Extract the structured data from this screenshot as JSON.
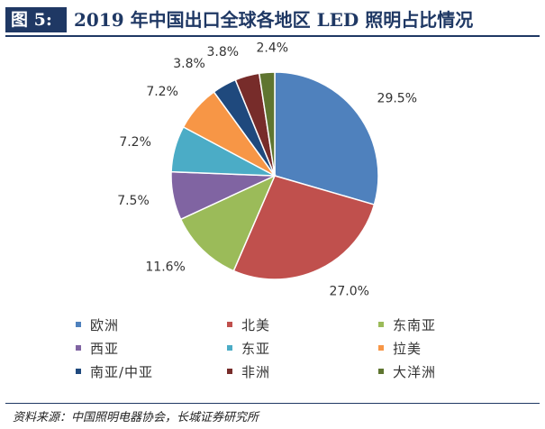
{
  "header": {
    "figure_label": "图 5:",
    "title": "2019 年中国出口全球各地区 LED 照明占比情况"
  },
  "chart_data": {
    "type": "pie",
    "start_angle_deg": 0,
    "direction": "clockwise",
    "label_format": "percent_one_decimal",
    "legend_placement": "bottom",
    "slices": [
      {
        "name": "欧洲",
        "value": 29.5,
        "label": "29.5%",
        "color": "#4f81bd"
      },
      {
        "name": "北美",
        "value": 27.0,
        "label": "27.0%",
        "color": "#c0504d"
      },
      {
        "name": "东南亚",
        "value": 11.6,
        "label": "11.6%",
        "color": "#9bbb59"
      },
      {
        "name": "西亚",
        "value": 7.5,
        "label": "7.5%",
        "color": "#8064a2"
      },
      {
        "name": "东亚",
        "value": 7.2,
        "label": "7.2%",
        "color": "#4bacc6"
      },
      {
        "name": "拉美",
        "value": 7.2,
        "label": "7.2%",
        "color": "#f79646"
      },
      {
        "name": "南亚/中亚",
        "value": 3.8,
        "label": "3.8%",
        "color": "#1f497d"
      },
      {
        "name": "非洲",
        "value": 3.8,
        "label": "3.8%",
        "color": "#772c2a"
      },
      {
        "name": "大洋洲",
        "value": 2.4,
        "label": "2.4%",
        "color": "#5f7530"
      }
    ]
  },
  "footer": {
    "source": "资料来源：中国照明电器协会，长城证券研究所"
  }
}
